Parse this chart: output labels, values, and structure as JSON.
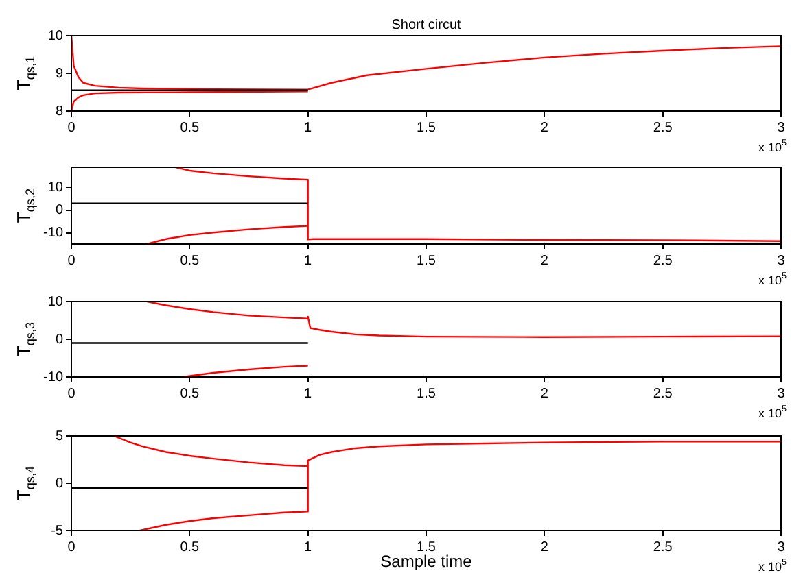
{
  "chart_data": [
    {
      "type": "line",
      "title": "Short circut",
      "ylabel": "T$_{qs,1}$",
      "annotations": [
        "x 10$^{5}$"
      ],
      "marker": "none",
      "xlim": [
        0,
        3
      ],
      "xticks": [
        0,
        0.5,
        1,
        1.5,
        2,
        2.5,
        3
      ],
      "ylim": [
        8,
        10
      ],
      "yticks": [
        8,
        9,
        10
      ],
      "series": [
        {
          "color": "#000000",
          "x": [
            0,
            1
          ],
          "values": [
            8.55,
            8.55
          ]
        },
        {
          "color": "#ff0000",
          "x": [
            0,
            0.01,
            0.03,
            0.05,
            0.1,
            0.2,
            0.3,
            0.6,
            1,
            1.1,
            1.25,
            1.5,
            1.75,
            2,
            2.25,
            2.5,
            2.75,
            3
          ],
          "values": [
            10,
            9.2,
            8.9,
            8.75,
            8.67,
            8.62,
            8.6,
            8.58,
            8.57,
            8.75,
            8.95,
            9.12,
            9.28,
            9.42,
            9.52,
            9.6,
            9.67,
            9.72
          ]
        },
        {
          "color": "#ff0000",
          "x": [
            0,
            0.01,
            0.03,
            0.05,
            0.1,
            0.2,
            0.5,
            1
          ],
          "values": [
            8,
            8.25,
            8.36,
            8.42,
            8.47,
            8.49,
            8.5,
            8.52
          ]
        }
      ]
    },
    {
      "type": "line",
      "ylabel": "T$_{qs,2}$",
      "annotations": [
        "x 10$^{5}$"
      ],
      "marker": "none",
      "xlim": [
        0,
        3
      ],
      "xticks": [
        0,
        0.5,
        1,
        1.5,
        2,
        2.5,
        3
      ],
      "ylim": [
        -15,
        19
      ],
      "yticks": [
        -10,
        0,
        10
      ],
      "series": [
        {
          "color": "#000000",
          "x": [
            0,
            1
          ],
          "values": [
            3,
            3
          ]
        },
        {
          "color": "#ff0000",
          "x": [
            0.44,
            0.5,
            0.6,
            0.75,
            0.9,
            1,
            1,
            1.02,
            1.5,
            2,
            2.5,
            3
          ],
          "values": [
            19,
            17.5,
            16.3,
            15,
            14,
            13.5,
            -13,
            -12.8,
            -12.8,
            -13.2,
            -13.3,
            -13.7
          ]
        },
        {
          "color": "#ff0000",
          "x": [
            0.32,
            0.4,
            0.5,
            0.6,
            0.75,
            0.9,
            1
          ],
          "values": [
            -15,
            -12.8,
            -11,
            -9.9,
            -8.5,
            -7.5,
            -7
          ]
        }
      ]
    },
    {
      "type": "line",
      "ylabel": "T$_{qs,3}$",
      "annotations": [
        "x 10$^{5}$"
      ],
      "marker": "none",
      "xlim": [
        0,
        3
      ],
      "xticks": [
        0,
        0.5,
        1,
        1.5,
        2,
        2.5,
        3
      ],
      "ylim": [
        -10,
        10
      ],
      "yticks": [
        -10,
        0,
        10
      ],
      "series": [
        {
          "color": "#000000",
          "x": [
            0,
            1
          ],
          "values": [
            -1,
            -1
          ]
        },
        {
          "color": "#ff0000",
          "x": [
            0.32,
            0.4,
            0.5,
            0.6,
            0.75,
            0.9,
            1,
            1,
            1.01,
            1.05,
            1.1,
            1.2,
            1.3,
            1.5,
            2,
            2.5,
            3
          ],
          "values": [
            10,
            9,
            8,
            7.2,
            6.3,
            5.8,
            5.5,
            6,
            3,
            2.5,
            2,
            1.3,
            1,
            0.7,
            0.6,
            0.7,
            0.8
          ]
        },
        {
          "color": "#ff0000",
          "x": [
            0.47,
            0.6,
            0.75,
            0.9,
            1
          ],
          "values": [
            -10,
            -8.9,
            -8,
            -7.3,
            -7
          ]
        }
      ]
    },
    {
      "type": "line",
      "xlabel": "Sample time",
      "ylabel": "T$_{qs,4}$",
      "annotations": [
        "x 10$^{5}$"
      ],
      "marker": "none",
      "xlim": [
        0,
        3
      ],
      "xticks": [
        0,
        0.5,
        1,
        1.5,
        2,
        2.5,
        3
      ],
      "ylim": [
        -5,
        5
      ],
      "yticks": [
        -5,
        0,
        5
      ],
      "series": [
        {
          "color": "#000000",
          "x": [
            0,
            1
          ],
          "values": [
            -0.5,
            -0.5
          ]
        },
        {
          "color": "#ff0000",
          "x": [
            0.18,
            0.25,
            0.3,
            0.4,
            0.5,
            0.6,
            0.75,
            0.9,
            1
          ],
          "values": [
            5,
            4.3,
            3.9,
            3.3,
            2.9,
            2.6,
            2.2,
            1.9,
            1.8
          ]
        },
        {
          "color": "#ff0000",
          "x": [
            0.29,
            0.4,
            0.5,
            0.6,
            0.75,
            0.9,
            1,
            1,
            1.05,
            1.1,
            1.2,
            1.3,
            1.5,
            1.75,
            2,
            2.5,
            3
          ],
          "values": [
            -5,
            -4.4,
            -4,
            -3.7,
            -3.4,
            -3.1,
            -3,
            2.4,
            3,
            3.3,
            3.7,
            3.9,
            4.1,
            4.2,
            4.3,
            4.4,
            4.4
          ]
        }
      ]
    }
  ]
}
